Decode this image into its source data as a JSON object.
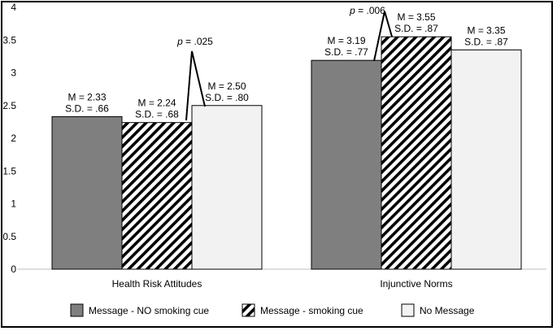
{
  "chart_data": {
    "type": "bar",
    "categories": [
      "Health Risk Attitudes",
      "Injunctive Norms"
    ],
    "series": [
      {
        "name": "Message - NO smoking cue",
        "values": [
          2.33,
          3.19
        ],
        "sd": [
          0.66,
          0.77
        ],
        "color": "#7f7f7f",
        "pattern": "solid"
      },
      {
        "name": "Message - smoking cue",
        "values": [
          2.24,
          3.55
        ],
        "sd": [
          0.68,
          0.87
        ],
        "color": "#ffffff",
        "pattern": "diagonal-hatch"
      },
      {
        "name": "No Message",
        "values": [
          2.5,
          3.35
        ],
        "sd": [
          0.8,
          0.87
        ],
        "color": "#f2f2f2",
        "pattern": "solid"
      }
    ],
    "labels": [
      [
        [
          "M = 2.33",
          "S.D. = .66"
        ],
        [
          "M = 2.24",
          "S.D. = .68"
        ],
        [
          "M = 2.50",
          "S.D. = .80"
        ]
      ],
      [
        [
          "M = 3.19",
          "S.D. = .77"
        ],
        [
          "M = 3.55",
          "S.D. = .87"
        ],
        [
          "M = 3.35",
          "S.D. = .87"
        ]
      ]
    ],
    "annotations": [
      {
        "category": "Health Risk Attitudes",
        "p_prefix": "p",
        "p_value": " = .025"
      },
      {
        "category": "Injunctive Norms",
        "p_prefix": "p",
        "p_value": " = .006"
      }
    ],
    "y_ticks": [
      "0",
      "0.5",
      "1",
      "1.5",
      "2",
      "2.5",
      "3",
      "3.5",
      "4"
    ],
    "ylim": [
      0,
      4
    ],
    "grid": false,
    "legend_position": "bottom"
  }
}
